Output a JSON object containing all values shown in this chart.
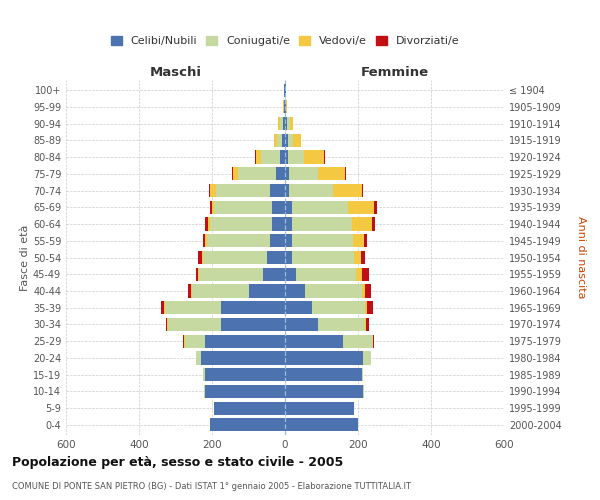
{
  "age_groups": [
    "0-4",
    "5-9",
    "10-14",
    "15-19",
    "20-24",
    "25-29",
    "30-34",
    "35-39",
    "40-44",
    "45-49",
    "50-54",
    "55-59",
    "60-64",
    "65-69",
    "70-74",
    "75-79",
    "80-84",
    "85-89",
    "90-94",
    "95-99",
    "100+"
  ],
  "birth_years": [
    "2000-2004",
    "1995-1999",
    "1990-1994",
    "1985-1989",
    "1980-1984",
    "1975-1979",
    "1970-1974",
    "1965-1969",
    "1960-1964",
    "1955-1959",
    "1950-1954",
    "1945-1949",
    "1940-1944",
    "1935-1939",
    "1930-1934",
    "1925-1929",
    "1920-1924",
    "1915-1919",
    "1910-1914",
    "1905-1909",
    "≤ 1904"
  ],
  "male": {
    "celibi": [
      205,
      195,
      220,
      220,
      230,
      220,
      175,
      175,
      100,
      60,
      50,
      40,
      35,
      35,
      40,
      25,
      15,
      8,
      5,
      2,
      2
    ],
    "coniugati": [
      0,
      0,
      2,
      5,
      15,
      55,
      145,
      155,
      155,
      175,
      175,
      175,
      170,
      160,
      150,
      105,
      50,
      15,
      8,
      2,
      1
    ],
    "vedovi": [
      0,
      0,
      0,
      0,
      0,
      2,
      2,
      2,
      2,
      2,
      2,
      3,
      5,
      5,
      15,
      12,
      15,
      8,
      5,
      1,
      0
    ],
    "divorziati": [
      0,
      0,
      0,
      0,
      0,
      2,
      5,
      8,
      8,
      8,
      10,
      8,
      8,
      5,
      2,
      2,
      2,
      0,
      0,
      0,
      0
    ]
  },
  "female": {
    "nubili": [
      200,
      190,
      215,
      210,
      215,
      160,
      90,
      75,
      55,
      30,
      20,
      18,
      18,
      18,
      12,
      10,
      8,
      8,
      5,
      2,
      2
    ],
    "coniugate": [
      0,
      0,
      2,
      5,
      20,
      80,
      130,
      145,
      155,
      165,
      168,
      168,
      165,
      155,
      120,
      80,
      45,
      15,
      8,
      2,
      1
    ],
    "vedove": [
      0,
      0,
      0,
      0,
      0,
      2,
      2,
      5,
      8,
      15,
      20,
      30,
      55,
      70,
      80,
      75,
      55,
      22,
      10,
      2,
      0
    ],
    "divorziate": [
      0,
      0,
      0,
      0,
      0,
      2,
      8,
      15,
      18,
      20,
      10,
      8,
      8,
      8,
      2,
      2,
      2,
      0,
      0,
      0,
      0
    ]
  },
  "colors": {
    "celibi_nubili": "#4C72B0",
    "coniugati": "#C5D9A0",
    "vedovi": "#F5C842",
    "divorziati": "#C01014"
  },
  "xlim": 600,
  "title_main": "Popolazione per età, sesso e stato civile - 2005",
  "title_sub": "COMUNE DI PONTE SAN PIETRO (BG) - Dati ISTAT 1° gennaio 2005 - Elaborazione TUTTITALIA.IT",
  "legend_labels": [
    "Celibi/Nubili",
    "Coniugati/e",
    "Vedovi/e",
    "Divorziati/e"
  ],
  "label_maschi": "Maschi",
  "label_femmine": "Femmine",
  "ylabel_left": "Fasce di età",
  "ylabel_right": "Anni di nascita"
}
